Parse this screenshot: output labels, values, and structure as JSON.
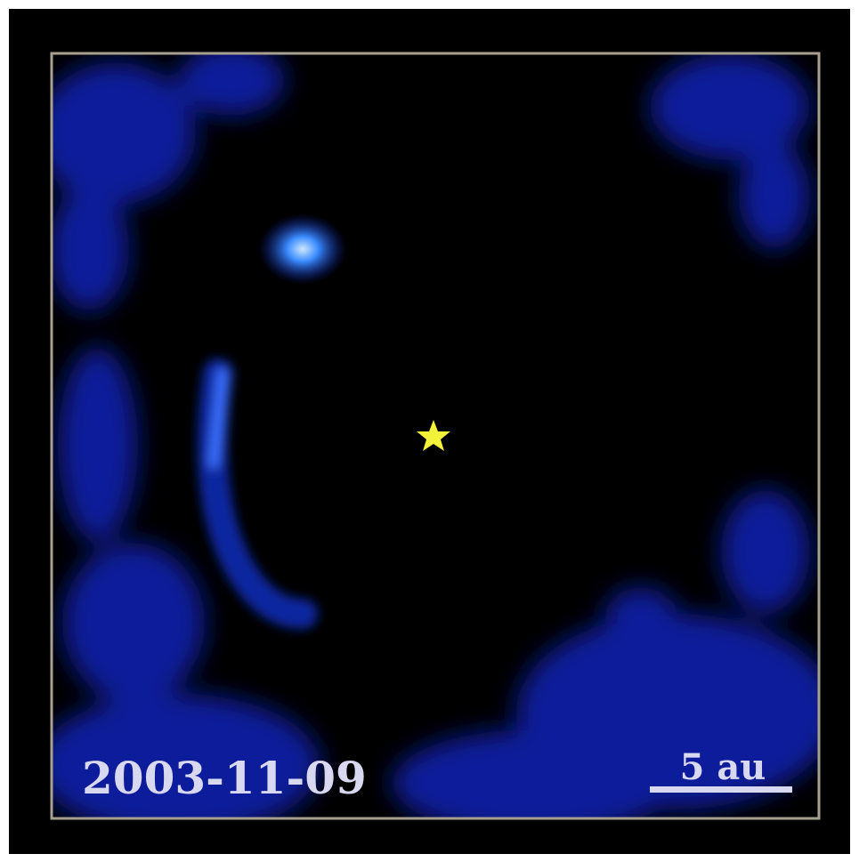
{
  "image": {
    "date_label": "2003-11-09",
    "scale_label": "5 au"
  }
}
